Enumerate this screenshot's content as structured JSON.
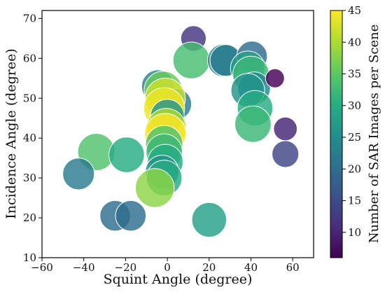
{
  "chart_data": {
    "type": "scatter",
    "xlabel": "Squint Angle (degree)",
    "ylabel": "Incidence Angle (degree)",
    "xlim": [
      -60,
      70
    ],
    "ylim": [
      10,
      72
    ],
    "xticks": [
      "−60",
      "−40",
      "−20",
      "0",
      "20",
      "40",
      "60"
    ],
    "yticks": [
      "10",
      "20",
      "30",
      "40",
      "50",
      "60",
      "70"
    ],
    "grid": false,
    "colorbar": {
      "label": "Number of SAR Images per Scene",
      "min": 6,
      "max": 45,
      "ticks": [
        "10",
        "15",
        "20",
        "25",
        "30",
        "35",
        "40",
        "45"
      ],
      "colormap": "viridis"
    },
    "points": [
      {
        "x": 12.5,
        "y": 65.0,
        "count": 12
      },
      {
        "x": 11.5,
        "y": 59.5,
        "count": 33
      },
      {
        "x": 27.0,
        "y": 59.5,
        "count": 24
      },
      {
        "x": 28.0,
        "y": 59.5,
        "count": 22
      },
      {
        "x": 40.5,
        "y": 60.5,
        "count": 20
      },
      {
        "x": 38.5,
        "y": 57.5,
        "count": 28
      },
      {
        "x": 40.0,
        "y": 56.0,
        "count": 32
      },
      {
        "x": 41.5,
        "y": 52.5,
        "count": 24
      },
      {
        "x": 38.5,
        "y": 52.0,
        "count": 26
      },
      {
        "x": 42.0,
        "y": 47.5,
        "count": 30
      },
      {
        "x": 41.0,
        "y": 43.5,
        "count": 32
      },
      {
        "x": 51.5,
        "y": 55.0,
        "count": 6
      },
      {
        "x": 56.5,
        "y": 42.3,
        "count": 10
      },
      {
        "x": 56.5,
        "y": 36.0,
        "count": 14
      },
      {
        "x": -4.5,
        "y": 53.0,
        "count": 24
      },
      {
        "x": -2.0,
        "y": 52.0,
        "count": 36
      },
      {
        "x": 4.0,
        "y": 48.5,
        "count": 22
      },
      {
        "x": -1.0,
        "y": 50.0,
        "count": 42
      },
      {
        "x": -1.5,
        "y": 47.5,
        "count": 44
      },
      {
        "x": 0.0,
        "y": 45.5,
        "count": 26
      },
      {
        "x": -0.5,
        "y": 42.5,
        "count": 40
      },
      {
        "x": -1.0,
        "y": 41.0,
        "count": 45
      },
      {
        "x": -1.5,
        "y": 38.5,
        "count": 34
      },
      {
        "x": -1.5,
        "y": 36.5,
        "count": 32
      },
      {
        "x": -1.0,
        "y": 34.0,
        "count": 30
      },
      {
        "x": -2.5,
        "y": 31.5,
        "count": 26
      },
      {
        "x": -1.5,
        "y": 30.0,
        "count": 30
      },
      {
        "x": -6.0,
        "y": 27.5,
        "count": 38
      },
      {
        "x": -34.0,
        "y": 36.5,
        "count": 34
      },
      {
        "x": -19.5,
        "y": 35.8,
        "count": 30
      },
      {
        "x": -42.5,
        "y": 31.0,
        "count": 22
      },
      {
        "x": -25.0,
        "y": 20.5,
        "count": 20
      },
      {
        "x": -17.5,
        "y": 20.5,
        "count": 20
      },
      {
        "x": 20.0,
        "y": 19.5,
        "count": 28
      }
    ]
  }
}
